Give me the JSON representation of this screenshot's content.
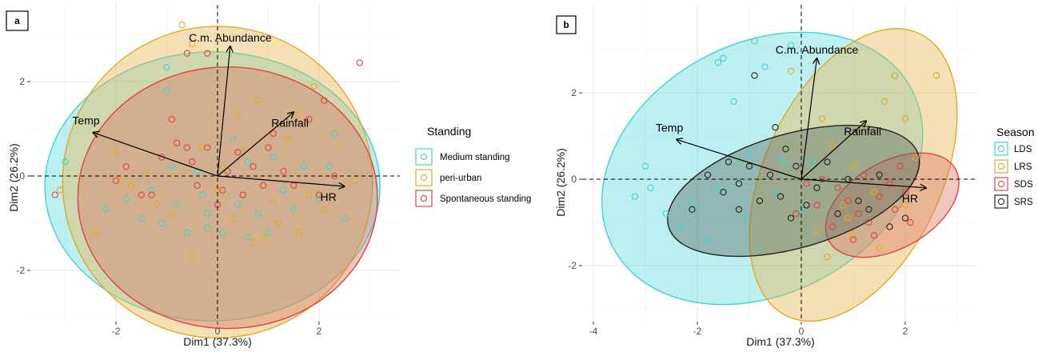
{
  "panels": [
    {
      "letter": "a",
      "xlabel": "Dim1 (37.3%)",
      "ylabel": "Dim2 (26.2%)",
      "x_ticks": [
        -2,
        0,
        2
      ],
      "y_ticks": [
        -2,
        0,
        2
      ],
      "xlim": [
        -3.7,
        3.3
      ],
      "ylim": [
        -3.25,
        3.4
      ],
      "legend": {
        "title": "Standing",
        "position": "right",
        "entries": [
          {
            "label": "Medium standing",
            "color": "#3fd3d6"
          },
          {
            "label": "peri-urban",
            "color": "#e6a823"
          },
          {
            "label": "Spontaneous standing",
            "color": "#e0453a"
          }
        ]
      },
      "ellipses": [
        {
          "group": "Medium standing",
          "color": "#3fd3d6",
          "fill": "#5fd9dc",
          "center": [
            -0.1,
            -0.22
          ],
          "rx": 3.3,
          "ry": 2.85
        },
        {
          "group": "peri-urban",
          "color": "#e6a823",
          "fill": "#e8b550",
          "center": [
            0.0,
            -0.13
          ],
          "rx": 3.05,
          "ry": 3.3
        },
        {
          "group": "Spontaneous standing",
          "color": "#e0453a",
          "fill": "#d97a66",
          "center": [
            0.2,
            -0.46
          ],
          "rx": 2.95,
          "ry": 2.77
        }
      ],
      "arrows": [
        {
          "label": "C.m. Abundance",
          "x": 0.25,
          "y": 2.75
        },
        {
          "label": "Rainfall",
          "x": 1.5,
          "y": 1.35
        },
        {
          "label": "Temp",
          "x": -2.45,
          "y": 0.92
        },
        {
          "label": "HR",
          "x": 2.5,
          "y": -0.22
        }
      ]
    },
    {
      "letter": "b",
      "xlabel": "Dim1 (37.3%)",
      "ylabel": "Dim2 (26.2%)",
      "x_ticks": [
        -4,
        -2,
        0,
        2
      ],
      "y_ticks": [
        -2,
        0,
        2
      ],
      "xlim": [
        -4.15,
        3.45
      ],
      "ylim": [
        -3.25,
        3.4
      ],
      "legend": {
        "title": "Season",
        "position": "right",
        "entries": [
          {
            "label": "LDS",
            "color": "#3fd3d6"
          },
          {
            "label": "LRS",
            "color": "#e6a823"
          },
          {
            "label": "SDS",
            "color": "#e0453a"
          },
          {
            "label": "SRS",
            "color": "#222222"
          }
        ]
      },
      "ellipses": [
        {
          "group": "LDS",
          "color": "#3fd3d6",
          "fill": "#5fd9dc",
          "center": [
            -0.75,
            0.25
          ],
          "rx": 3.25,
          "ry": 2.9,
          "rotate": -28
        },
        {
          "group": "LRS",
          "color": "#e6a823",
          "fill": "#e8b550",
          "center": [
            1.0,
            0.1
          ],
          "rx": 3.0,
          "ry": 2.05,
          "rotate": -65
        },
        {
          "group": "SDS",
          "color": "#e0453a",
          "fill": "#d97a66",
          "center": [
            1.75,
            -0.6
          ],
          "rx": 1.4,
          "ry": 1.0,
          "rotate": -30
        },
        {
          "group": "SRS",
          "color": "#222222",
          "fill": "#5a6a60",
          "center": [
            -0.15,
            -0.27
          ],
          "rx": 2.5,
          "ry": 1.32,
          "rotate": -16
        }
      ],
      "arrows": [
        {
          "label": "C.m. Abundance",
          "x": 0.3,
          "y": 2.8
        },
        {
          "label": "Rainfall",
          "x": 1.25,
          "y": 1.35
        },
        {
          "label": "Temp",
          "x": -2.4,
          "y": 0.92
        },
        {
          "label": "HR",
          "x": 2.4,
          "y": -0.2
        }
      ]
    }
  ],
  "chart_data": [
    {
      "type": "scatter",
      "title": "a",
      "xlabel": "Dim1 (37.3%)",
      "ylabel": "Dim2 (26.2%)",
      "xlim": [
        -3.7,
        3.3
      ],
      "ylim": [
        -3.25,
        3.4
      ],
      "grid": true,
      "legend_title": "Standing",
      "series": [
        {
          "name": "Medium standing",
          "color": "#3fd3d6",
          "points": [
            [
              -3.0,
              0.3
            ],
            [
              -2.2,
              -0.7
            ],
            [
              -1.8,
              -0.5
            ],
            [
              -1.5,
              -0.9
            ],
            [
              -1.3,
              -0.3
            ],
            [
              -1.1,
              -1.0
            ],
            [
              -1.0,
              2.3
            ],
            [
              -1.0,
              1.8
            ],
            [
              -0.9,
              0.2
            ],
            [
              -0.8,
              -0.6
            ],
            [
              -0.6,
              -1.2
            ],
            [
              -0.4,
              0.1
            ],
            [
              -0.3,
              -0.4
            ],
            [
              -0.2,
              -1.1
            ],
            [
              0.1,
              -1.2
            ],
            [
              0.3,
              0.8
            ],
            [
              0.4,
              -0.6
            ],
            [
              0.6,
              0.3
            ],
            [
              0.8,
              -0.8
            ],
            [
              1.0,
              -1.2
            ],
            [
              1.1,
              0.4
            ],
            [
              1.3,
              -0.3
            ],
            [
              1.5,
              -0.7
            ],
            [
              1.7,
              0.2
            ],
            [
              2.0,
              -0.5
            ],
            [
              2.2,
              0.2
            ],
            [
              2.5,
              -0.9
            ],
            [
              2.3,
              0.9
            ],
            [
              -0.2,
              -0.8
            ],
            [
              0.6,
              -1.3
            ]
          ]
        },
        {
          "name": "peri-urban",
          "color": "#e6a823",
          "points": [
            [
              -3.1,
              -0.3
            ],
            [
              -2.4,
              -1.2
            ],
            [
              -2.0,
              0.5
            ],
            [
              -1.7,
              -0.2
            ],
            [
              -1.4,
              0.1
            ],
            [
              -1.2,
              -0.6
            ],
            [
              -0.9,
              -0.8
            ],
            [
              -0.7,
              3.2
            ],
            [
              -0.5,
              2.8
            ],
            [
              -0.3,
              0.6
            ],
            [
              0.0,
              -0.3
            ],
            [
              0.3,
              -0.9
            ],
            [
              0.5,
              0.5
            ],
            [
              0.8,
              1.6
            ],
            [
              0.9,
              -1.3
            ],
            [
              1.2,
              -1.0
            ],
            [
              1.4,
              0.8
            ],
            [
              1.6,
              1.3
            ],
            [
              1.8,
              -0.4
            ],
            [
              2.1,
              -0.7
            ],
            [
              2.4,
              0.6
            ],
            [
              2.7,
              -0.1
            ],
            [
              1.9,
              1.9
            ],
            [
              0.4,
              1.3
            ],
            [
              -0.5,
              -1.7
            ],
            [
              0.7,
              -1.4
            ],
            [
              1.1,
              -0.5
            ],
            [
              -1.9,
              -0.1
            ],
            [
              1.6,
              -1.2
            ],
            [
              0.1,
              0.2
            ]
          ]
        },
        {
          "name": "Spontaneous standing",
          "color": "#e0453a",
          "points": [
            [
              -3.2,
              -0.4
            ],
            [
              -2.0,
              -0.1
            ],
            [
              -1.8,
              0.2
            ],
            [
              -1.5,
              -0.4
            ],
            [
              -1.1,
              0.4
            ],
            [
              -0.9,
              1.2
            ],
            [
              -0.8,
              0.7
            ],
            [
              -0.6,
              0.6
            ],
            [
              -0.5,
              0.3
            ],
            [
              -0.4,
              -0.2
            ],
            [
              -0.2,
              0.6
            ],
            [
              0.0,
              -0.6
            ],
            [
              0.2,
              0.1
            ],
            [
              0.4,
              0.5
            ],
            [
              0.5,
              -0.4
            ],
            [
              0.7,
              0.2
            ],
            [
              0.9,
              -0.2
            ],
            [
              1.1,
              0.9
            ],
            [
              1.3,
              0.1
            ],
            [
              1.5,
              -0.2
            ],
            [
              1.8,
              1.2
            ],
            [
              2.0,
              -0.4
            ],
            [
              2.3,
              0.0
            ],
            [
              2.8,
              2.4
            ],
            [
              -0.2,
              2.6
            ],
            [
              -0.6,
              2.6
            ],
            [
              2.1,
              1.6
            ],
            [
              -1.3,
              -0.4
            ],
            [
              0.1,
              -0.3
            ],
            [
              1.0,
              0.6
            ]
          ]
        }
      ],
      "arrows": [
        {
          "label": "C.m. Abundance",
          "x": 0.25,
          "y": 2.75
        },
        {
          "label": "Rainfall",
          "x": 1.5,
          "y": 1.35
        },
        {
          "label": "Temp",
          "x": -2.45,
          "y": 0.92
        },
        {
          "label": "HR",
          "x": 2.5,
          "y": -0.22
        }
      ]
    },
    {
      "type": "scatter",
      "title": "b",
      "xlabel": "Dim1 (37.3%)",
      "ylabel": "Dim2 (26.2%)",
      "xlim": [
        -4.15,
        3.45
      ],
      "ylim": [
        -3.25,
        3.4
      ],
      "grid": true,
      "legend_title": "Season",
      "series": [
        {
          "name": "LDS",
          "color": "#3fd3d6",
          "points": [
            [
              -3.2,
              -0.4
            ],
            [
              -3.0,
              0.3
            ],
            [
              -2.9,
              -0.2
            ],
            [
              -2.3,
              -1.1
            ],
            [
              -2.1,
              -0.6
            ],
            [
              -1.8,
              -1.4
            ],
            [
              -1.6,
              -0.2
            ],
            [
              -1.6,
              2.7
            ],
            [
              -1.5,
              2.8
            ],
            [
              -1.3,
              1.8
            ],
            [
              -1.1,
              -0.9
            ],
            [
              -1.0,
              0.6
            ],
            [
              -0.9,
              3.2
            ],
            [
              -0.7,
              2.6
            ],
            [
              -0.5,
              -0.3
            ],
            [
              -0.4,
              0.5
            ],
            [
              -0.3,
              0.4
            ],
            [
              -0.2,
              3.1
            ],
            [
              0.0,
              -0.7
            ],
            [
              0.2,
              0.4
            ],
            [
              -2.6,
              -0.8
            ],
            [
              -0.8,
              -1.6
            ]
          ]
        },
        {
          "name": "LRS",
          "color": "#e6a823",
          "points": [
            [
              -0.2,
              2.5
            ],
            [
              0.4,
              1.4
            ],
            [
              0.6,
              0.8
            ],
            [
              0.8,
              -0.6
            ],
            [
              1.0,
              -1.3
            ],
            [
              1.2,
              1.2
            ],
            [
              1.4,
              -0.3
            ],
            [
              1.6,
              1.8
            ],
            [
              1.8,
              2.4
            ],
            [
              2.0,
              -0.6
            ],
            [
              2.2,
              0.5
            ],
            [
              0.5,
              -1.8
            ],
            [
              0.3,
              -1.2
            ],
            [
              2.6,
              2.4
            ],
            [
              2.0,
              1.4
            ],
            [
              1.0,
              0.3
            ],
            [
              1.5,
              -1.6
            ],
            [
              0.9,
              -0.9
            ]
          ]
        },
        {
          "name": "SDS",
          "color": "#e0453a",
          "points": [
            [
              0.1,
              -0.1
            ],
            [
              0.4,
              0.0
            ],
            [
              0.7,
              -0.2
            ],
            [
              0.9,
              -0.5
            ],
            [
              1.1,
              -0.8
            ],
            [
              1.2,
              0.1
            ],
            [
              1.3,
              -1.0
            ],
            [
              1.5,
              -0.4
            ],
            [
              1.7,
              -0.1
            ],
            [
              1.8,
              -0.7
            ],
            [
              2.0,
              -0.3
            ],
            [
              2.1,
              -1.0
            ],
            [
              1.4,
              -1.3
            ],
            [
              0.6,
              -1.1
            ],
            [
              0.3,
              -0.6
            ],
            [
              1.9,
              0.3
            ],
            [
              -0.1,
              -0.8
            ],
            [
              1.0,
              -1.4
            ]
          ]
        },
        {
          "name": "SRS",
          "color": "#222222",
          "points": [
            [
              -2.1,
              -0.7
            ],
            [
              -1.8,
              0.1
            ],
            [
              -1.5,
              -0.3
            ],
            [
              -1.4,
              0.4
            ],
            [
              -1.2,
              -0.1
            ],
            [
              -1.0,
              0.3
            ],
            [
              -0.9,
              2.4
            ],
            [
              -0.8,
              -0.5
            ],
            [
              -0.6,
              0.1
            ],
            [
              -0.5,
              1.2
            ],
            [
              -0.4,
              -0.4
            ],
            [
              -0.2,
              -0.9
            ],
            [
              -0.1,
              0.3
            ],
            [
              0.1,
              -0.6
            ],
            [
              0.3,
              -0.2
            ],
            [
              0.5,
              0.4
            ],
            [
              0.7,
              -0.8
            ],
            [
              0.9,
              0.0
            ],
            [
              1.1,
              -0.5
            ],
            [
              1.3,
              -0.7
            ],
            [
              1.5,
              0.1
            ],
            [
              1.7,
              -1.1
            ],
            [
              2.0,
              -0.9
            ],
            [
              -1.2,
              -0.7
            ],
            [
              -0.3,
              0.7
            ]
          ]
        }
      ],
      "arrows": [
        {
          "label": "C.m. Abundance",
          "x": 0.3,
          "y": 2.8
        },
        {
          "label": "Rainfall",
          "x": 1.25,
          "y": 1.35
        },
        {
          "label": "Temp",
          "x": -2.4,
          "y": 0.92
        },
        {
          "label": "HR",
          "x": 2.4,
          "y": -0.2
        }
      ]
    }
  ]
}
